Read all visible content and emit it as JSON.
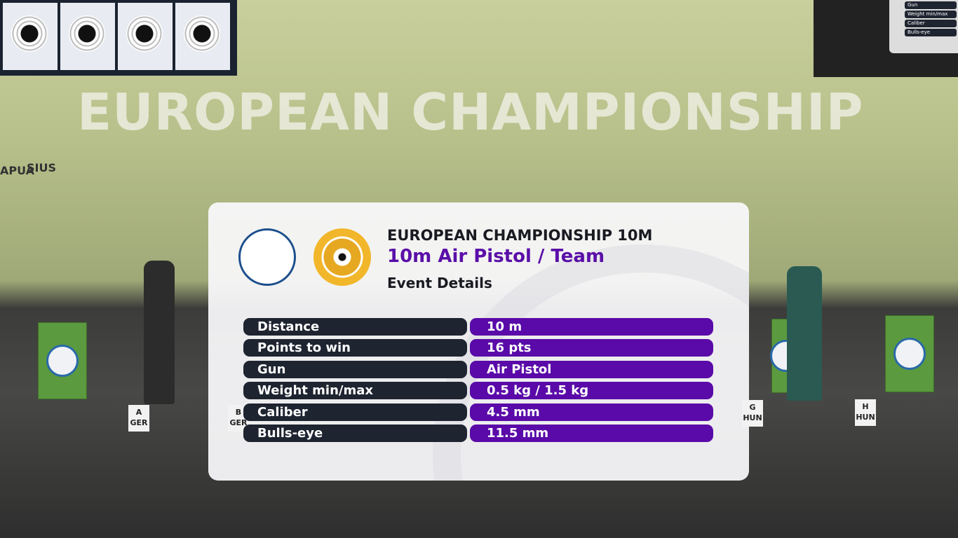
{
  "scene": {
    "wall_banner": "EUROPEAN CHAMPIONSHIP",
    "sponsors": [
      "APUA",
      "SIUS"
    ],
    "lanes": [
      {
        "letter": "A",
        "country": "GER"
      },
      {
        "letter": "B",
        "country": "GER"
      },
      {
        "letter": "G",
        "country": "HUN"
      },
      {
        "letter": "H",
        "country": "HUN"
      }
    ]
  },
  "monitor": {
    "rows": [
      "Gun",
      "Weight min/max",
      "Caliber",
      "Bulls-eye"
    ]
  },
  "overlay": {
    "title": "EUROPEAN CHAMPIONSHIP 10M",
    "event": "10m Air Pistol / Team",
    "subtitle": "Event Details",
    "rows": [
      [
        "Distance",
        "10 m"
      ],
      [
        "Points to win",
        "16 pts"
      ],
      [
        "Gun",
        "Air Pistol"
      ],
      [
        "Weight min/max",
        "0.5 kg / 1.5 kg"
      ],
      [
        "Caliber",
        "4.5 mm"
      ],
      [
        "Bulls-eye",
        "11.5 mm"
      ]
    ]
  }
}
